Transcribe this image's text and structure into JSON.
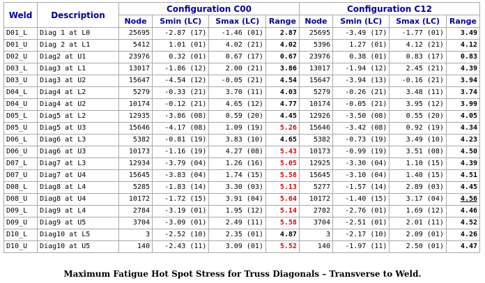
{
  "headers": {
    "weld": "Weld",
    "description": "Description",
    "config_c00": "Configuration C00",
    "config_c12": "Configuration C12",
    "node": "Node",
    "smin": "Smin (LC)",
    "smax": "Smax (LC)",
    "range": "Range"
  },
  "rows": [
    {
      "weld": "D01_L",
      "desc": "Diag 1 at L0",
      "c00": {
        "node": "25695",
        "smin": "-2.87 (17)",
        "smax": "-1.46 (01)",
        "range": "2.87",
        "red": false
      },
      "c12": {
        "node": "25695",
        "smin": "-3.49 (17)",
        "smax": "-1.77 (01)",
        "range": "3.49",
        "ul": false
      }
    },
    {
      "weld": "D01_U",
      "desc": "Diag 2 at L1",
      "c00": {
        "node": "5412",
        "smin": "1.01 (01)",
        "smax": "4.02 (21)",
        "range": "4.02",
        "red": false
      },
      "c12": {
        "node": "5396",
        "smin": "1.27 (01)",
        "smax": "4.12 (21)",
        "range": "4.12",
        "ul": false
      }
    },
    {
      "weld": "D02_U",
      "desc": "Diag2 at U1",
      "c00": {
        "node": "23976",
        "smin": "0.32 (01)",
        "smax": "0.67 (17)",
        "range": "0.67",
        "red": false
      },
      "c12": {
        "node": "23976",
        "smin": "0.38 (01)",
        "smax": "0.83 (17)",
        "range": "0.83",
        "ul": false
      }
    },
    {
      "weld": "D03_L",
      "desc": "Diag3 at L1",
      "c00": {
        "node": "13017",
        "smin": "-1.86 (12)",
        "smax": "2.00 (21)",
        "range": "3.86",
        "red": false
      },
      "c12": {
        "node": "13017",
        "smin": "-1.94 (12)",
        "smax": "2.45 (21)",
        "range": "4.39",
        "ul": false
      }
    },
    {
      "weld": "D03_U",
      "desc": "Diag3 at U2",
      "c00": {
        "node": "15647",
        "smin": "-4.54 (12)",
        "smax": "-0.05 (21)",
        "range": "4.54",
        "red": false
      },
      "c12": {
        "node": "15647",
        "smin": "-3.94 (13)",
        "smax": "-0.16 (21)",
        "range": "3.94",
        "ul": false
      }
    },
    {
      "weld": "D04_L",
      "desc": "Diag4 at L2",
      "c00": {
        "node": "5279",
        "smin": "-0.33 (21)",
        "smax": "3.70 (11)",
        "range": "4.03",
        "red": false
      },
      "c12": {
        "node": "5279",
        "smin": "-0.26 (21)",
        "smax": "3.48 (11)",
        "range": "3.74",
        "ul": false
      }
    },
    {
      "weld": "D04_U",
      "desc": "Diag4 at U2",
      "c00": {
        "node": "10174",
        "smin": "-0.12 (21)",
        "smax": "4.65 (12)",
        "range": "4.77",
        "red": false
      },
      "c12": {
        "node": "10174",
        "smin": "-0.05 (21)",
        "smax": "3.95 (12)",
        "range": "3.99",
        "ul": false
      }
    },
    {
      "weld": "D05_L",
      "desc": "Diag5 at L2",
      "c00": {
        "node": "12935",
        "smin": "-3.86 (08)",
        "smax": "0.59 (20)",
        "range": "4.45",
        "red": false
      },
      "c12": {
        "node": "12926",
        "smin": "-3.50 (08)",
        "smax": "0.55 (20)",
        "range": "4.05",
        "ul": false
      }
    },
    {
      "weld": "D05_U",
      "desc": "Diag5 at U3",
      "c00": {
        "node": "15646",
        "smin": "-4.17 (08)",
        "smax": "1.09 (19)",
        "range": "5.26",
        "red": true
      },
      "c12": {
        "node": "15646",
        "smin": "-3.42 (08)",
        "smax": "0.92 (19)",
        "range": "4.34",
        "ul": false
      }
    },
    {
      "weld": "D06_L",
      "desc": "Diag6 at L3",
      "c00": {
        "node": "5382",
        "smin": "-0.81 (19)",
        "smax": "3.83 (10)",
        "range": "4.65",
        "red": false
      },
      "c12": {
        "node": "5382",
        "smin": "-0.73 (19)",
        "smax": "3.49 (10)",
        "range": "4.23",
        "ul": false
      }
    },
    {
      "weld": "D06_U",
      "desc": "Diag6 at U3",
      "c00": {
        "node": "10173",
        "smin": "-1.16 (19)",
        "smax": "4.27 (08)",
        "range": "5.43",
        "red": true
      },
      "c12": {
        "node": "10173",
        "smin": "-0.99 (19)",
        "smax": "3.51 (08)",
        "range": "4.50",
        "ul": false
      }
    },
    {
      "weld": "D07_L",
      "desc": "Diag7 at L3",
      "c00": {
        "node": "12934",
        "smin": "-3.79 (04)",
        "smax": "1.26 (16)",
        "range": "5.05",
        "red": true
      },
      "c12": {
        "node": "12925",
        "smin": "-3.30 (04)",
        "smax": "1.10 (15)",
        "range": "4.39",
        "ul": false
      }
    },
    {
      "weld": "D07_U",
      "desc": "Diag7 at U4",
      "c00": {
        "node": "15645",
        "smin": "-3.83 (04)",
        "smax": "1.74 (15)",
        "range": "5.58",
        "red": true
      },
      "c12": {
        "node": "15645",
        "smin": "-3.10 (04)",
        "smax": "1.40 (15)",
        "range": "4.51",
        "ul": false
      }
    },
    {
      "weld": "D08_L",
      "desc": "Diag8 at L4",
      "c00": {
        "node": "5285",
        "smin": "-1.83 (14)",
        "smax": "3.30 (03)",
        "range": "5.13",
        "red": true
      },
      "c12": {
        "node": "5277",
        "smin": "-1.57 (14)",
        "smax": "2.89 (03)",
        "range": "4.45",
        "ul": false
      }
    },
    {
      "weld": "D08_U",
      "desc": "Diag8 at U4",
      "c00": {
        "node": "10172",
        "smin": "-1.72 (15)",
        "smax": "3.91 (04)",
        "range": "5.64",
        "red": true
      },
      "c12": {
        "node": "10172",
        "smin": "-1.40 (15)",
        "smax": "3.17 (04)",
        "range": "4.56",
        "ul": true
      }
    },
    {
      "weld": "D09_L",
      "desc": "Diag9 at L4",
      "c00": {
        "node": "2784",
        "smin": "-3.19 (01)",
        "smax": "1.95 (12)",
        "range": "5.14",
        "red": true
      },
      "c12": {
        "node": "2782",
        "smin": "-2.76 (01)",
        "smax": "1.69 (12)",
        "range": "4.46",
        "ul": false
      }
    },
    {
      "weld": "D09_U",
      "desc": "Diag9 at U5",
      "c00": {
        "node": "3704",
        "smin": "-3.09 (01)",
        "smax": "2.49 (11)",
        "range": "5.58",
        "red": true
      },
      "c12": {
        "node": "3704",
        "smin": "-2.51 (01)",
        "smax": "2.01 (11)",
        "range": "4.52",
        "ul": false
      }
    },
    {
      "weld": "D10_L",
      "desc": "Diag10 at L5",
      "c00": {
        "node": "3",
        "smin": "-2.52 (10)",
        "smax": "2.35 (01)",
        "range": "4.87",
        "red": false
      },
      "c12": {
        "node": "3",
        "smin": "-2.17 (10)",
        "smax": "2.09 (01)",
        "range": "4.26",
        "ul": false
      }
    },
    {
      "weld": "D10_U",
      "desc": "Diag10 at U5",
      "c00": {
        "node": "140",
        "smin": "-2.43 (11)",
        "smax": "3.09 (01)",
        "range": "5.52",
        "red": true
      },
      "c12": {
        "node": "140",
        "smin": "-1.97 (11)",
        "smax": "2.50 (01)",
        "range": "4.47",
        "ul": false
      }
    }
  ],
  "caption": "Maximum Fatigue Hot Spot Stress for Truss Diagonals – Transverse to Weld.",
  "colors": {
    "header_text": "#0000a0",
    "highlight_red": "#e00000",
    "border": "#a8a8a8"
  }
}
